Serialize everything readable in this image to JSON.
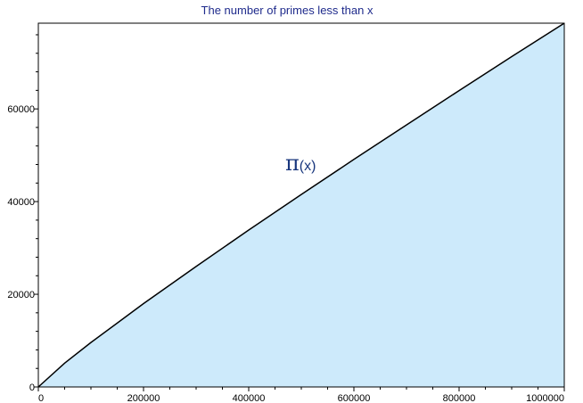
{
  "chart_data": {
    "type": "area",
    "title": "The number of primes less than x",
    "xlabel": "",
    "ylabel": "",
    "xlim": [
      0,
      1000000
    ],
    "ylim": [
      0,
      78498
    ],
    "xticks": [
      0,
      200000,
      400000,
      600000,
      800000,
      1000000
    ],
    "yticks": [
      0,
      20000,
      40000,
      60000
    ],
    "xtick_labels": [
      "0",
      "200000",
      "400000",
      "600000",
      "800000",
      "1000000"
    ],
    "ytick_labels": [
      "0",
      "20000",
      "40000",
      "60000"
    ],
    "grid": false,
    "legend": "none",
    "annotation": {
      "symbol": "π",
      "text": "(x)"
    },
    "series": [
      {
        "x": [
          0,
          50000,
          100000,
          200000,
          300000,
          400000,
          500000,
          600000,
          700000,
          800000,
          900000,
          1000000
        ],
        "y": [
          0,
          5133,
          9592,
          17984,
          25997,
          33860,
          41538,
          49098,
          56543,
          63951,
          71274,
          78498
        ]
      }
    ],
    "colors": {
      "fill": "#cdeafb",
      "line": "#000000",
      "title": "#1f2b8c",
      "annotation": "#18367d"
    }
  }
}
